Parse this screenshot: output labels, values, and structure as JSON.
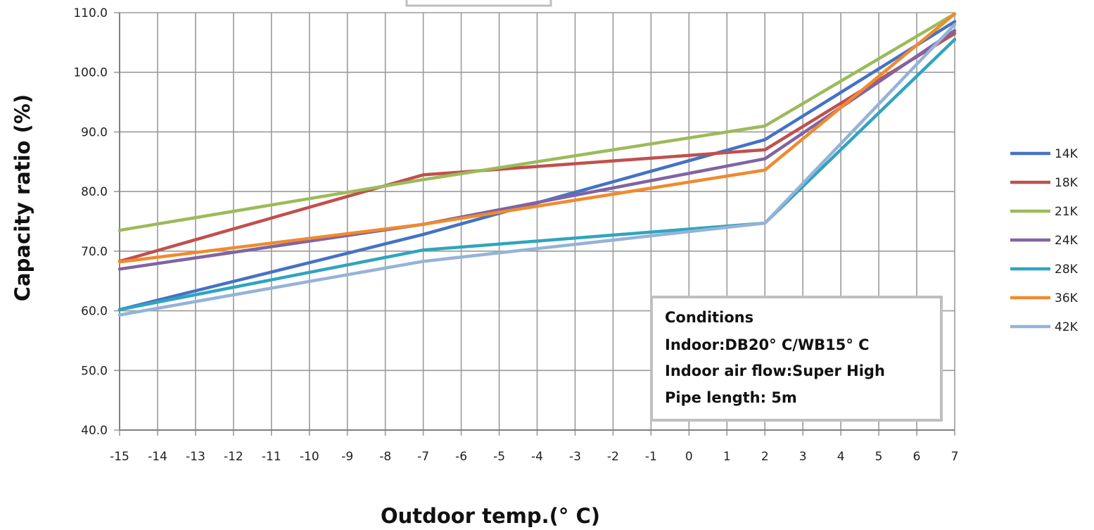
{
  "chart_data": {
    "type": "line",
    "x": [
      -15,
      -14,
      -13,
      -12,
      -11,
      -10,
      -9,
      -8,
      -7,
      -6,
      -5,
      -4,
      -3,
      -2,
      -1,
      0,
      1,
      2,
      3,
      4,
      5,
      6,
      7
    ],
    "x_tick_labels": [
      "-15",
      "-14",
      "-13",
      "-12",
      "-11",
      "-10",
      "-9",
      "-8",
      "-7",
      "-6",
      "-5",
      "-4",
      "-3",
      "-2",
      "-1",
      "0",
      "1",
      "2",
      "3",
      "4",
      "5",
      "6",
      "7"
    ],
    "y_tick_labels": [
      "40.0",
      "50.0",
      "60.0",
      "70.0",
      "80.0",
      "90.0",
      "100.0",
      "110.0"
    ],
    "ylim": [
      40,
      110
    ],
    "xlim": [
      -15,
      7
    ],
    "xlabel": "Outdoor temp.(° C)",
    "ylabel": "Capacity ratio (%)",
    "grid": true,
    "legend_position": "right",
    "series": [
      {
        "name": "14K",
        "color": "#4472C4",
        "x": [
          -15,
          -7,
          2,
          7
        ],
        "values": [
          60.2,
          72.8,
          88.7,
          108.5
        ]
      },
      {
        "name": "18K",
        "color": "#C0504D",
        "x": [
          -15,
          -7,
          2,
          7
        ],
        "values": [
          68.3,
          82.8,
          87.0,
          106.5
        ]
      },
      {
        "name": "21K",
        "color": "#9BBB59",
        "x": [
          -15,
          -7,
          2,
          7
        ],
        "values": [
          73.5,
          82.0,
          91.0,
          109.8
        ]
      },
      {
        "name": "24K",
        "color": "#8064A2",
        "x": [
          -15,
          -7,
          2,
          7
        ],
        "values": [
          67.0,
          74.5,
          85.5,
          107.0
        ]
      },
      {
        "name": "28K",
        "color": "#31A4BE",
        "x": [
          -15,
          -7,
          2,
          7
        ],
        "values": [
          60.2,
          70.2,
          74.7,
          105.5
        ]
      },
      {
        "name": "36K",
        "color": "#F08A2E",
        "x": [
          -15,
          -7,
          2,
          7
        ],
        "values": [
          68.2,
          74.5,
          83.6,
          109.8
        ]
      },
      {
        "name": "42K",
        "color": "#95B3D7",
        "x": [
          -15,
          -7,
          2,
          7
        ],
        "values": [
          59.3,
          68.3,
          74.7,
          108.0
        ]
      }
    ],
    "annotation": {
      "lines": [
        "Conditions",
        "Indoor:DB20° C/WB15° C",
        "Indoor air flow:Super High",
        "Pipe length: 5m"
      ]
    }
  }
}
